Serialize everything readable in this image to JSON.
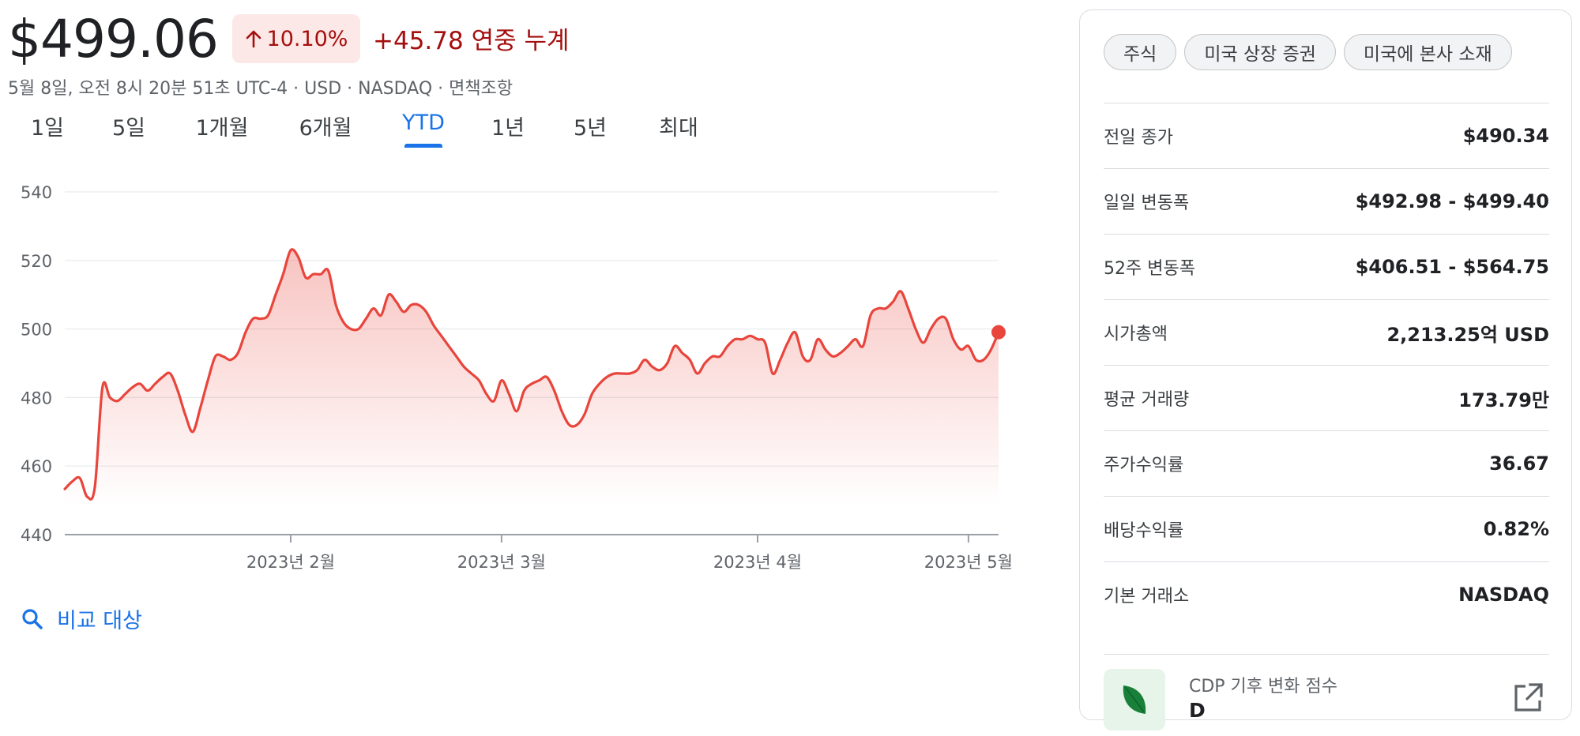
{
  "quote": {
    "price": "$499.06",
    "change_percent": "10.10%",
    "change_abs": "+45.78 연중 누계",
    "meta": "5월 8일, 오전 8시 20분 51초 UTC-4 · USD · NASDAQ · 면책조항"
  },
  "tabs": [
    {
      "label": "1일"
    },
    {
      "label": "5일"
    },
    {
      "label": "1개월"
    },
    {
      "label": "6개월"
    },
    {
      "label": "YTD",
      "active": true
    },
    {
      "label": "1년"
    },
    {
      "label": "5년"
    },
    {
      "label": "최대"
    }
  ],
  "compare": {
    "label": "비교 대상",
    "icon": "search-icon"
  },
  "chips": [
    "주식",
    "미국 상장 증권",
    "미국에 본사 소재"
  ],
  "stats": [
    {
      "label": "전일 종가",
      "value": "$490.34"
    },
    {
      "label": "일일 변동폭",
      "value": "$492.98 - $499.40"
    },
    {
      "label": "52주 변동폭",
      "value": "$406.51 - $564.75"
    },
    {
      "label": "시가총액",
      "value": "2,213.25억 USD"
    },
    {
      "label": "평균 거래량",
      "value": "173.79만"
    },
    {
      "label": "주가수익률",
      "value": "36.67"
    },
    {
      "label": "배당수익률",
      "value": "0.82%"
    },
    {
      "label": "기본 거래소",
      "value": "NASDAQ"
    }
  ],
  "cdp": {
    "label": "CDP 기후 변화 점수",
    "value": "D",
    "icon": "leaf-icon",
    "link_icon": "open-external-icon"
  },
  "colors": {
    "line": "#e8453c",
    "negative_text": "#a50e0e",
    "badge_bg": "#fce8e6",
    "accent": "#1a73e8"
  },
  "chart_data": {
    "type": "area",
    "ylim": [
      440,
      540
    ],
    "y_ticks": [
      440,
      460,
      480,
      500,
      520,
      540
    ],
    "x_tick_labels": [
      {
        "label": "2023년 2월",
        "index": 30
      },
      {
        "label": "2023년 3월",
        "index": 58
      },
      {
        "label": "2023년 4월",
        "index": 92
      },
      {
        "label": "2023년 5월",
        "index": 120
      }
    ],
    "grid": true,
    "series": [
      {
        "values": [
          453.3,
          455.5,
          456.5,
          451,
          454,
          483,
          480,
          479,
          481,
          483,
          484,
          482,
          484,
          486,
          487,
          482,
          475,
          470,
          477,
          485,
          492,
          492,
          491,
          493,
          499,
          503,
          503,
          504,
          510,
          516,
          523,
          521,
          515,
          516,
          516,
          517,
          507,
          502,
          500,
          500,
          503,
          506,
          504,
          510,
          508,
          505,
          507,
          507,
          505,
          501,
          498,
          495,
          492,
          489,
          487,
          485,
          481,
          479,
          485,
          481,
          476,
          482,
          484,
          485,
          486,
          482,
          476,
          472,
          472,
          475,
          481,
          484,
          486,
          487,
          487,
          487,
          488,
          491,
          489,
          488,
          490,
          495,
          493,
          491,
          487,
          490,
          492,
          492,
          495,
          497,
          497,
          498,
          497,
          496,
          487,
          491,
          496,
          499,
          492,
          491,
          497,
          494,
          492,
          493,
          495,
          497,
          495,
          504,
          506,
          506,
          508,
          511,
          506,
          500,
          496,
          500,
          503,
          503,
          497,
          494,
          495,
          491,
          491,
          494,
          499.06
        ]
      }
    ]
  }
}
